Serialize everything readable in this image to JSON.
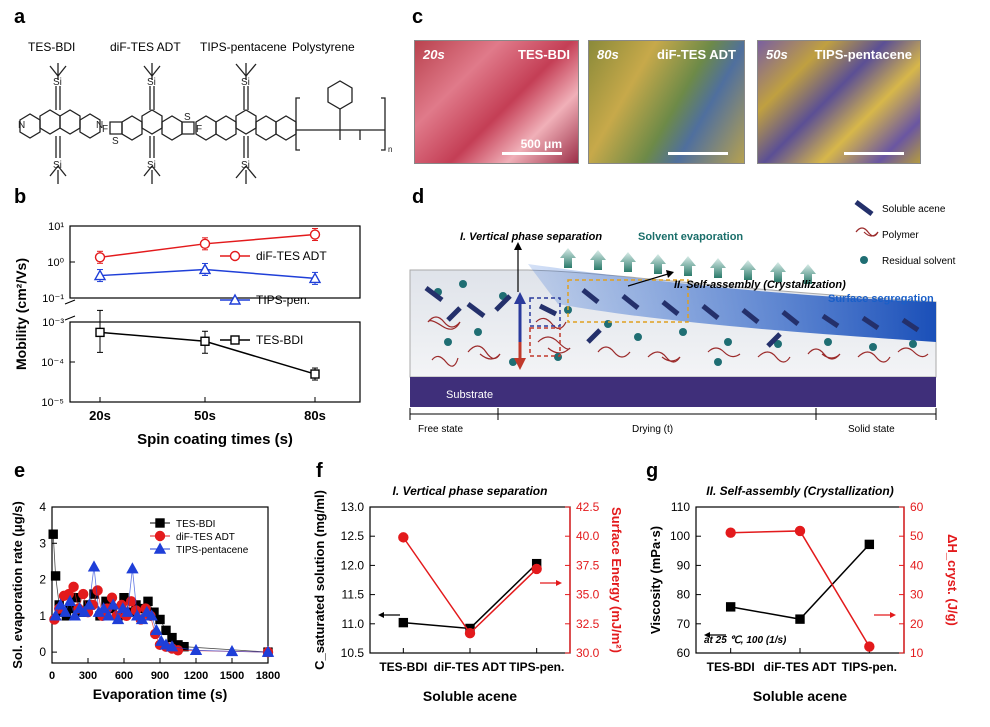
{
  "panels": {
    "a": "a",
    "b": "b",
    "c": "c",
    "d": "d",
    "e": "e",
    "f": "f",
    "g": "g"
  },
  "panel_a": {
    "molecules": [
      "TES-BDI",
      "diF-TES ADT",
      "TIPS-pentacene",
      "Polystyrene"
    ],
    "atoms": {
      "si": "Si",
      "f": "F",
      "s": "S",
      "n": "N"
    },
    "subscript_n": "n"
  },
  "panel_c": {
    "images": [
      {
        "time": "20s",
        "name": "TES-BDI",
        "scale": "500 μm"
      },
      {
        "time": "80s",
        "name": "diF-TES ADT",
        "scale": ""
      },
      {
        "time": "50s",
        "name": "TIPS-pentacene",
        "scale": ""
      }
    ]
  },
  "panel_d": {
    "legend": [
      "Soluble acene",
      "Polymer",
      "Residual solvent"
    ],
    "label_vps": "I. Vertical phase separation",
    "label_evap": "Solvent evaporation",
    "label_self": "II. Self-assembly (Crystallization)",
    "label_surface": "Surface segregation",
    "label_substrate": "Substrate",
    "stages": [
      "Free state",
      "Drying (t)",
      "Solid state"
    ]
  },
  "chart_data": [
    {
      "id": "b",
      "type": "line",
      "xlabel": "Spin coating times (s)",
      "ylabel": "Mobility (cm²/Vs)",
      "categories": [
        "20s",
        "50s",
        "80s"
      ],
      "yscale": "log (broken axis)",
      "yticks_upper": [
        "10¹",
        "10⁰",
        "10⁻¹"
      ],
      "yticks_lower": [
        "10⁻³",
        "10⁻⁴",
        "10⁻⁵"
      ],
      "series": [
        {
          "name": "diF-TES ADT",
          "color": "#e31a1c",
          "values": [
            1.35,
            3.2,
            5.8
          ]
        },
        {
          "name": "TIPS-pen.",
          "color": "#1f3fd8",
          "values": [
            0.42,
            0.62,
            0.35
          ]
        },
        {
          "name": "TES-BDI",
          "color": "#000000",
          "values": [
            0.00055,
            0.00033,
            5e-05
          ]
        }
      ]
    },
    {
      "id": "e",
      "type": "scatter",
      "xlabel": "Evaporation time (s)",
      "ylabel": "Sol. evaporation rate (μg/s)",
      "xlim": [
        0,
        1800
      ],
      "ylim": [
        -0.3,
        4
      ],
      "xticks": [
        0,
        300,
        600,
        900,
        1200,
        1500,
        1800
      ],
      "yticks": [
        0,
        1,
        2,
        3,
        4
      ],
      "series": [
        {
          "name": "TES-BDI",
          "color": "#000000",
          "marker": "square",
          "x": [
            10,
            30,
            60,
            90,
            120,
            150,
            200,
            250,
            300,
            350,
            400,
            450,
            500,
            550,
            600,
            650,
            700,
            750,
            800,
            850,
            900,
            950,
            1000,
            1050,
            1100,
            1800
          ],
          "y": [
            3.25,
            2.1,
            1.3,
            1.1,
            1.0,
            1.2,
            1.5,
            1.1,
            1.3,
            1.6,
            1.0,
            1.4,
            1.2,
            1.0,
            1.5,
            1.1,
            1.3,
            1.2,
            1.4,
            1.1,
            0.9,
            0.6,
            0.4,
            0.2,
            0.15,
            0.0
          ]
        },
        {
          "name": "diF-TES ADT",
          "color": "#e31a1c",
          "marker": "circle",
          "x": [
            20,
            60,
            100,
            140,
            180,
            220,
            260,
            300,
            340,
            380,
            420,
            460,
            500,
            540,
            580,
            620,
            660,
            700,
            740,
            780,
            820,
            860,
            900,
            950,
            1000,
            1050,
            1800
          ],
          "y": [
            0.9,
            1.2,
            1.55,
            1.6,
            1.8,
            1.2,
            1.6,
            1.1,
            1.3,
            1.7,
            1.0,
            1.2,
            1.5,
            1.0,
            1.3,
            1.0,
            1.4,
            1.15,
            0.9,
            1.2,
            1.0,
            0.5,
            0.2,
            0.15,
            0.1,
            0.05,
            0.0
          ]
        },
        {
          "name": "TIPS-pentacene",
          "color": "#1f3fd8",
          "marker": "triangle",
          "x": [
            30,
            70,
            110,
            150,
            190,
            230,
            270,
            310,
            350,
            390,
            430,
            470,
            510,
            550,
            590,
            630,
            670,
            710,
            750,
            790,
            830,
            870,
            910,
            950,
            1000,
            1200,
            1500,
            1800
          ],
          "y": [
            1.0,
            1.3,
            1.1,
            1.4,
            1.0,
            1.2,
            1.1,
            1.3,
            2.35,
            1.1,
            1.2,
            1.0,
            1.3,
            0.9,
            1.2,
            1.1,
            2.3,
            1.0,
            0.9,
            1.1,
            1.0,
            0.6,
            0.3,
            0.2,
            0.15,
            0.05,
            0.02,
            0.0
          ]
        }
      ]
    },
    {
      "id": "f",
      "type": "line",
      "title": "I. Vertical phase separation",
      "xlabel": "Soluble acene",
      "ylabel": "C_saturated solution (mg/ml)",
      "ylabel_right": "Surface Energy (mJ/m²)",
      "categories": [
        "TES-BDI",
        "diF-TES ADT",
        "TIPS-pen."
      ],
      "ylim": [
        10.5,
        13.0
      ],
      "yticks": [
        10.5,
        11.0,
        11.5,
        12.0,
        12.5,
        13.0
      ],
      "ylim_right": [
        30.0,
        42.5
      ],
      "yticks_right": [
        30.0,
        32.5,
        35.0,
        37.5,
        40.0,
        42.5
      ],
      "series": [
        {
          "name": "Saturated solution concentration",
          "axis": "left",
          "color": "#000000",
          "marker": "square",
          "values": [
            11.02,
            10.92,
            12.03
          ]
        },
        {
          "name": "Surface energy",
          "axis": "right",
          "color": "#e31a1c",
          "marker": "circle",
          "values": [
            39.9,
            31.7,
            37.2
          ]
        }
      ]
    },
    {
      "id": "g",
      "type": "line",
      "title": "II. Self-assembly (Crystallization)",
      "xlabel": "Soluble acene",
      "ylabel": "Viscosity (mPa·s)",
      "ylabel_right": "ΔH_cryst. (J/g)",
      "annotation": "at 25 ℃, 100 (1/s)",
      "categories": [
        "TES-BDI",
        "diF-TES ADT",
        "TIPS-pen."
      ],
      "ylim": [
        60,
        110
      ],
      "yticks": [
        60,
        70,
        80,
        90,
        100,
        110
      ],
      "ylim_right": [
        10,
        60
      ],
      "yticks_right": [
        10,
        20,
        30,
        40,
        50,
        60
      ],
      "series": [
        {
          "name": "Viscosity",
          "axis": "left",
          "color": "#000000",
          "marker": "square",
          "values": [
            75.8,
            71.6,
            97.2
          ]
        },
        {
          "name": "Crystallization enthalpy",
          "axis": "right",
          "color": "#e31a1c",
          "marker": "circle",
          "values": [
            51.2,
            51.8,
            12.2
          ]
        }
      ]
    }
  ]
}
